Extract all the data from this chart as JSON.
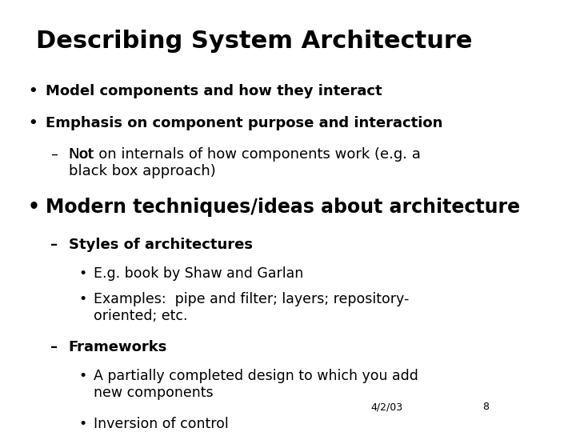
{
  "title": "Describing System Architecture",
  "title_fontsize": 22,
  "title_bold": true,
  "background_color": "#ffffff",
  "text_color": "#000000",
  "blue_color": "#0000cc",
  "footer_date": "4/2/03",
  "footer_page": "8",
  "content": [
    {
      "level": 1,
      "text": "Model components and how they interact",
      "bold": true,
      "color": "#000000"
    },
    {
      "level": 1,
      "text": "Emphasis on component purpose and interaction",
      "bold": true,
      "color": "#000000"
    },
    {
      "level": 2,
      "text": "Not on internals of how components work (e.g. a\nblack box approach)",
      "bold": false,
      "color": "#000000",
      "underline_word": "Not"
    },
    {
      "level": 1,
      "text": "Modern techniques/ideas about architecture",
      "bold": true,
      "color": "#000000",
      "large": true
    },
    {
      "level": 2,
      "text": "Styles of architectures",
      "bold": true,
      "color": "#000000"
    },
    {
      "level": 3,
      "text": "E.g. book by Shaw and Garlan",
      "bold": false,
      "color": "#000000"
    },
    {
      "level": 3,
      "text": "Examples:  pipe and filter; layers; repository-\noriented; etc.",
      "bold": false,
      "color": "#000000"
    },
    {
      "level": 2,
      "text": "Frameworks",
      "bold": true,
      "color": "#000000"
    },
    {
      "level": 3,
      "text": "A partially completed design to which you add\nnew components",
      "bold": false,
      "color": "#000000"
    },
    {
      "level": 3,
      "text": "Inversion of control",
      "bold": false,
      "color": "#000000"
    }
  ]
}
